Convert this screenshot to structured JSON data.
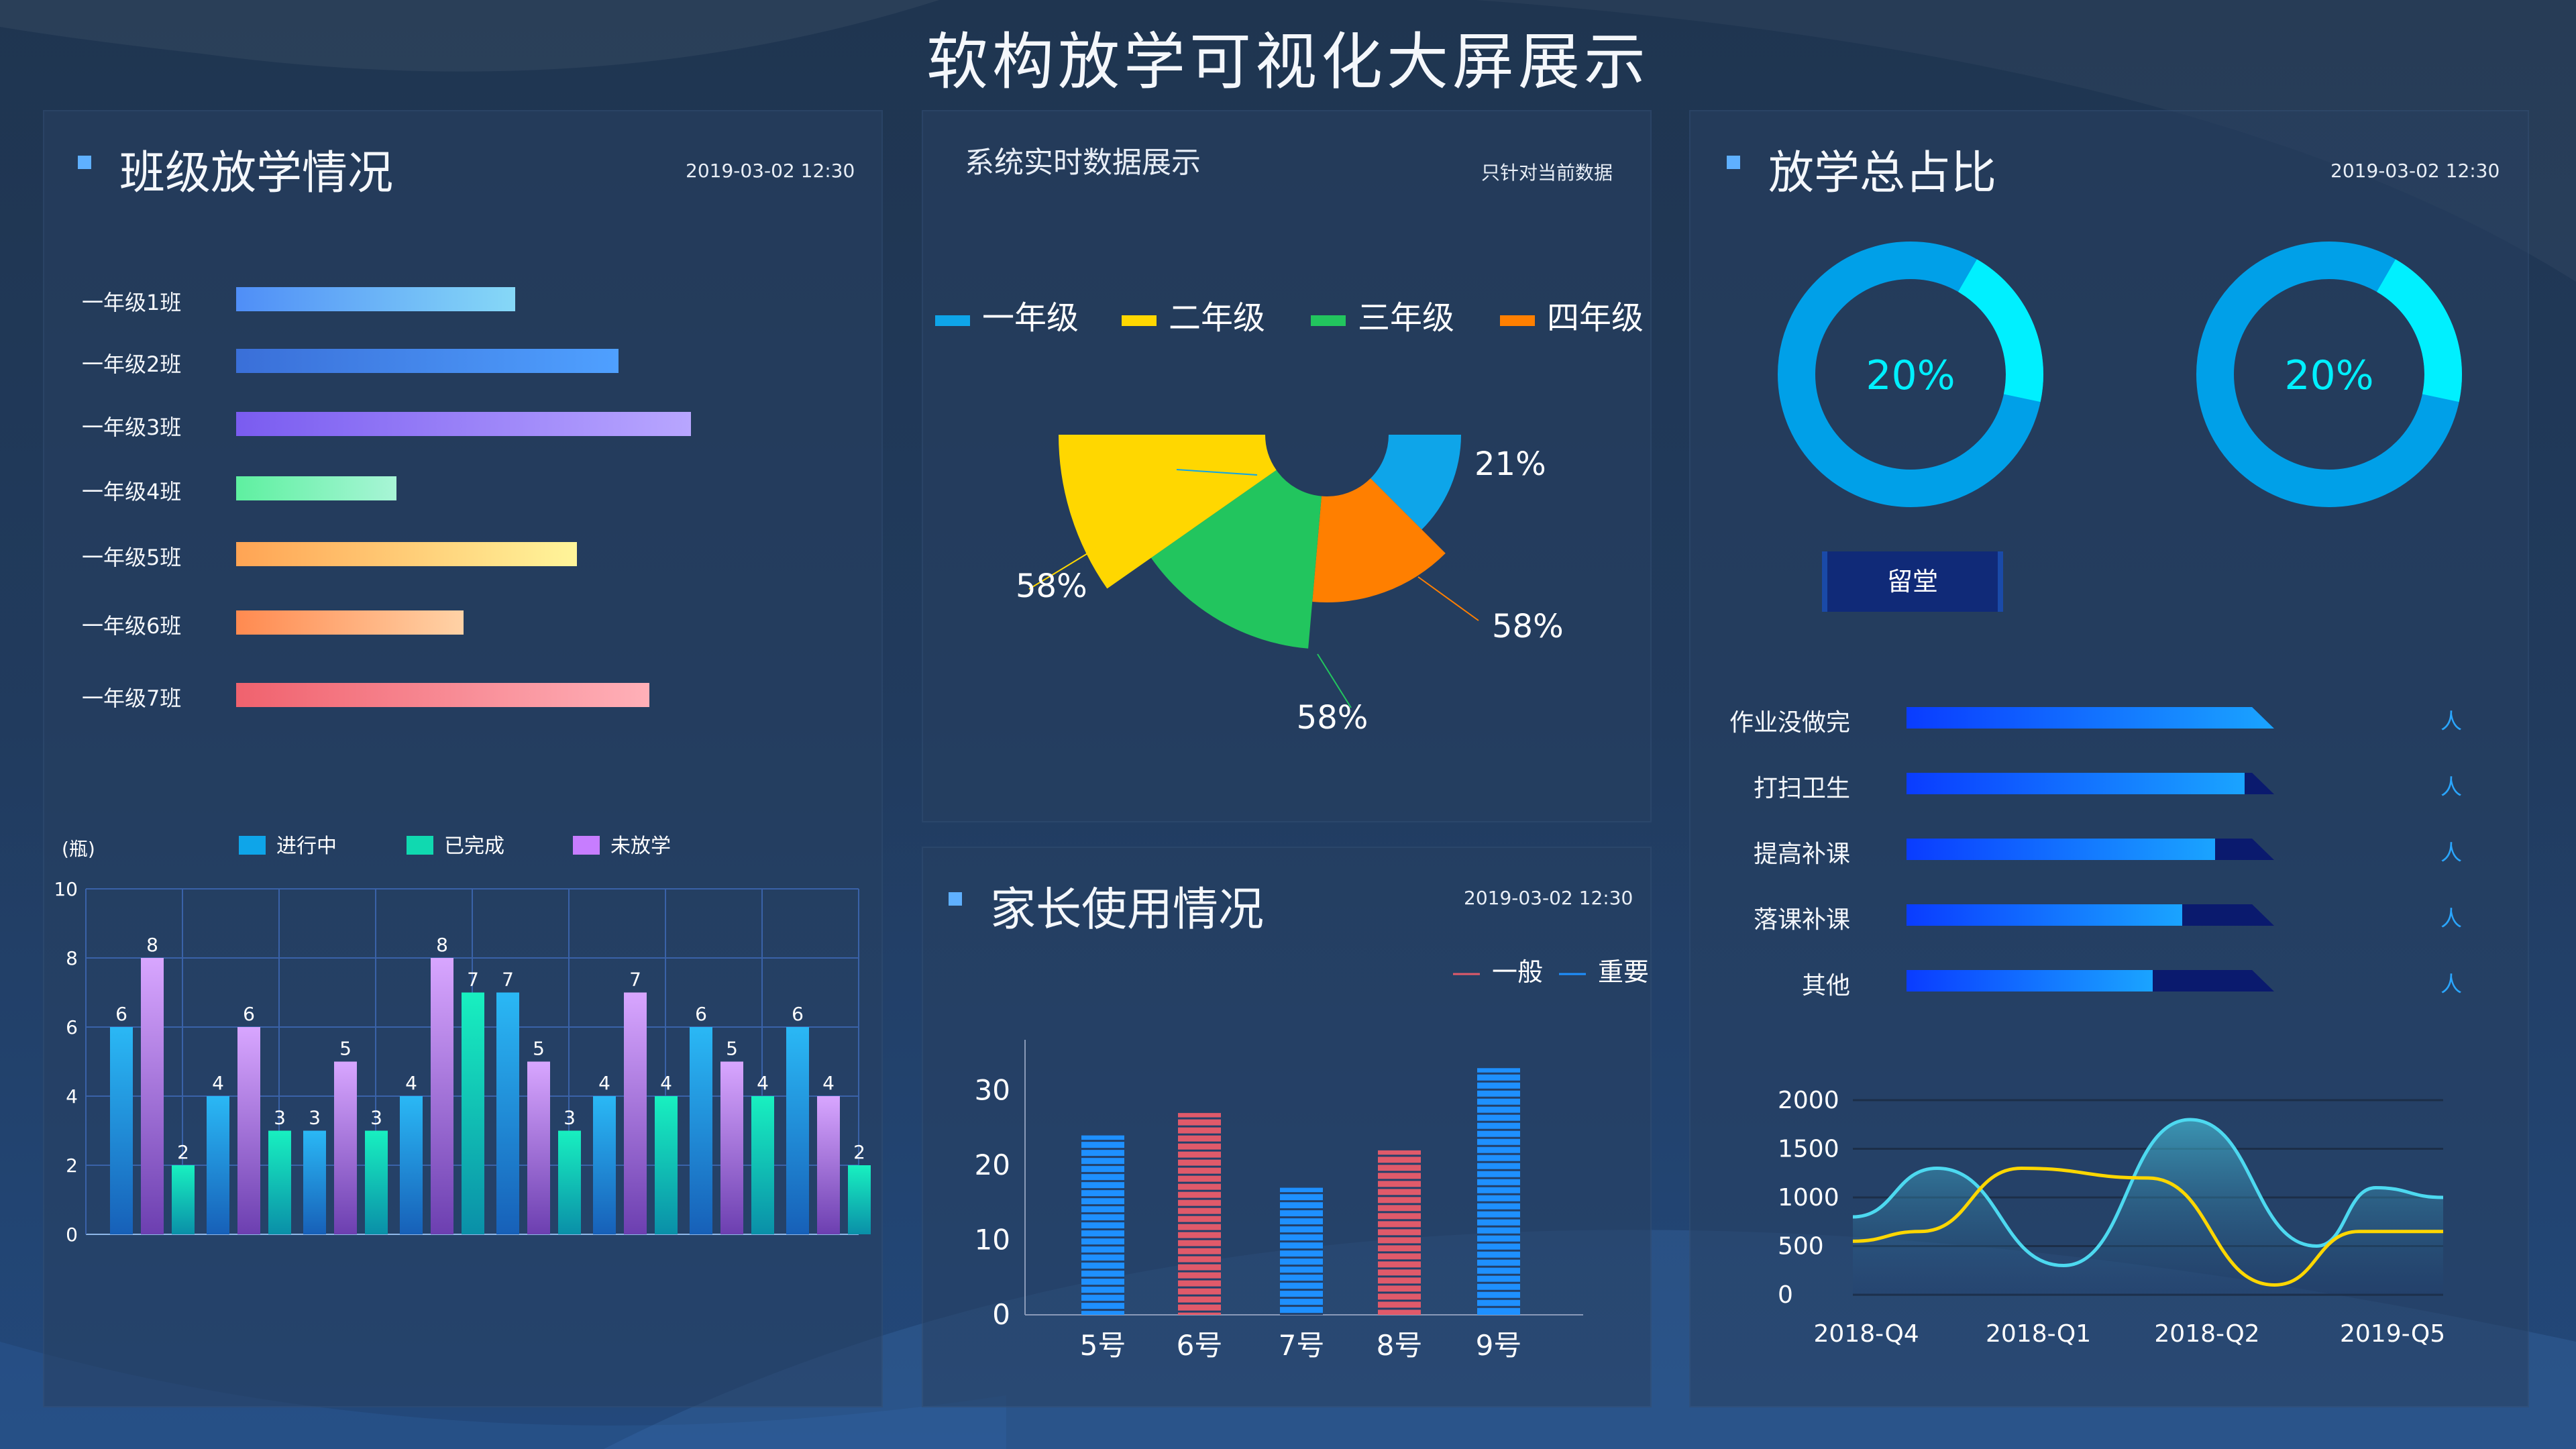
{
  "page": {
    "title": "软构放学可视化大屏展示"
  },
  "colors": {
    "accent": "#5fb0ff",
    "cyan": "#00f0ff",
    "ring_base": "#00a0e8",
    "yellow": "#ffd700",
    "green": "#22c55e",
    "orange": "#ff7f00",
    "blue": "#0ea5e9",
    "red_bar": "#e05a6a"
  },
  "class_panel": {
    "title": "班级放学情况",
    "timestamp": "2019-03-02  12:30",
    "classes": [
      {
        "label": "一年级1班",
        "value": 0.54,
        "from": "#4f8ef7",
        "to": "#86d8f7"
      },
      {
        "label": "一年级2班",
        "value": 0.74,
        "from": "#3a6fd8",
        "to": "#4fa0ff"
      },
      {
        "label": "一年级3班",
        "value": 0.88,
        "from": "#7a5cf0",
        "to": "#b8a6ff"
      },
      {
        "label": "一年级4班",
        "value": 0.31,
        "from": "#5ef0a0",
        "to": "#a8f5d6"
      },
      {
        "label": "一年级5班",
        "value": 0.66,
        "from": "#ffa454",
        "to": "#fff59a"
      },
      {
        "label": "一年级6班",
        "value": 0.44,
        "from": "#ff8a50",
        "to": "#ffd2a6"
      },
      {
        "label": "一年级7班",
        "value": 0.8,
        "from": "#f0626e",
        "to": "#ffb0b8"
      }
    ]
  },
  "chart_data": [
    {
      "type": "bar",
      "id": "status-bars",
      "unit_label": "(瓶)",
      "ylim": [
        0,
        10
      ],
      "yticks": [
        0,
        2,
        4,
        6,
        8,
        10
      ],
      "series": [
        {
          "name": "进行中",
          "color": "#0ea5e9",
          "values": [
            6,
            4,
            3,
            4,
            7,
            4,
            6,
            6
          ]
        },
        {
          "name": "未放学",
          "color": "#c77dff",
          "values": [
            8,
            6,
            5,
            8,
            5,
            7,
            5,
            4
          ]
        },
        {
          "name": "已完成",
          "color": "#10d9b0",
          "values": [
            2,
            3,
            3,
            7,
            3,
            4,
            4,
            2
          ]
        }
      ],
      "legend_order": [
        "进行中",
        "已完成",
        "未放学"
      ],
      "grid": true
    },
    {
      "type": "pie",
      "id": "grade-rose",
      "title": "系统实时数据展示",
      "note": "只针对当前数据",
      "legend": [
        {
          "name": "一年级",
          "color": "#0ea5e9"
        },
        {
          "name": "二年级",
          "color": "#ffd700"
        },
        {
          "name": "三年级",
          "color": "#22c55e"
        },
        {
          "name": "四年级",
          "color": "#ff7f00"
        }
      ],
      "slices": [
        {
          "name": "一年级",
          "label": "21%"
        },
        {
          "name": "二年级",
          "label": "58%"
        },
        {
          "name": "三年级",
          "label": "58%"
        },
        {
          "name": "四年级",
          "label": "58%"
        }
      ]
    },
    {
      "type": "bar",
      "id": "parent-usage",
      "title": "家长使用情况",
      "timestamp": "2019-03-02  12:30",
      "legend": [
        {
          "name": "一般",
          "color": "#e05a6a"
        },
        {
          "name": "重要",
          "color": "#1e90ff"
        }
      ],
      "categories": [
        "5号",
        "6号",
        "7号",
        "8号",
        "9号"
      ],
      "values": [
        24,
        27,
        17,
        22,
        33
      ],
      "bar_colors": [
        "#1e90ff",
        "#e05a6a",
        "#1e90ff",
        "#e05a6a",
        "#1e90ff"
      ],
      "ylim": [
        0,
        35
      ],
      "yticks": [
        0,
        10,
        20,
        30
      ]
    },
    {
      "type": "pie",
      "id": "donuts",
      "title": "放学总占比",
      "timestamp": "2019-03-02  12:30",
      "items": [
        {
          "label": "20%",
          "value": 0.2
        },
        {
          "label": "20%",
          "value": 0.2
        }
      ]
    },
    {
      "type": "area",
      "id": "trend",
      "categories": [
        "2018-Q4",
        "2018-Q1",
        "2018-Q2",
        "2019-Q5"
      ],
      "ylim": [
        0,
        2000
      ],
      "yticks": [
        0,
        500,
        1000,
        1500,
        2000
      ],
      "series": [
        {
          "color": "#4dd9f0",
          "x": [
            0,
            0.5,
            1.25,
            2,
            2.75,
            3.1,
            3.5
          ],
          "values": [
            800,
            1300,
            300,
            1800,
            500,
            1100,
            1000
          ]
        },
        {
          "color": "#ffd700",
          "x": [
            0,
            0.4,
            1,
            1.75,
            2.5,
            3,
            3.5
          ],
          "values": [
            550,
            650,
            1300,
            1200,
            100,
            650,
            650
          ]
        }
      ]
    }
  ],
  "stay_button": {
    "label": "留堂"
  },
  "grades": {
    "rows": [
      {
        "label": "作业没做完",
        "value": 1.0,
        "unit": "人"
      },
      {
        "label": "打扫卫生",
        "value": 0.92,
        "unit": "人"
      },
      {
        "label": "提高补课",
        "value": 0.84,
        "unit": "人"
      },
      {
        "label": "落课补课",
        "value": 0.75,
        "unit": "人"
      },
      {
        "label": "其他",
        "value": 0.67,
        "unit": "人"
      }
    ]
  }
}
